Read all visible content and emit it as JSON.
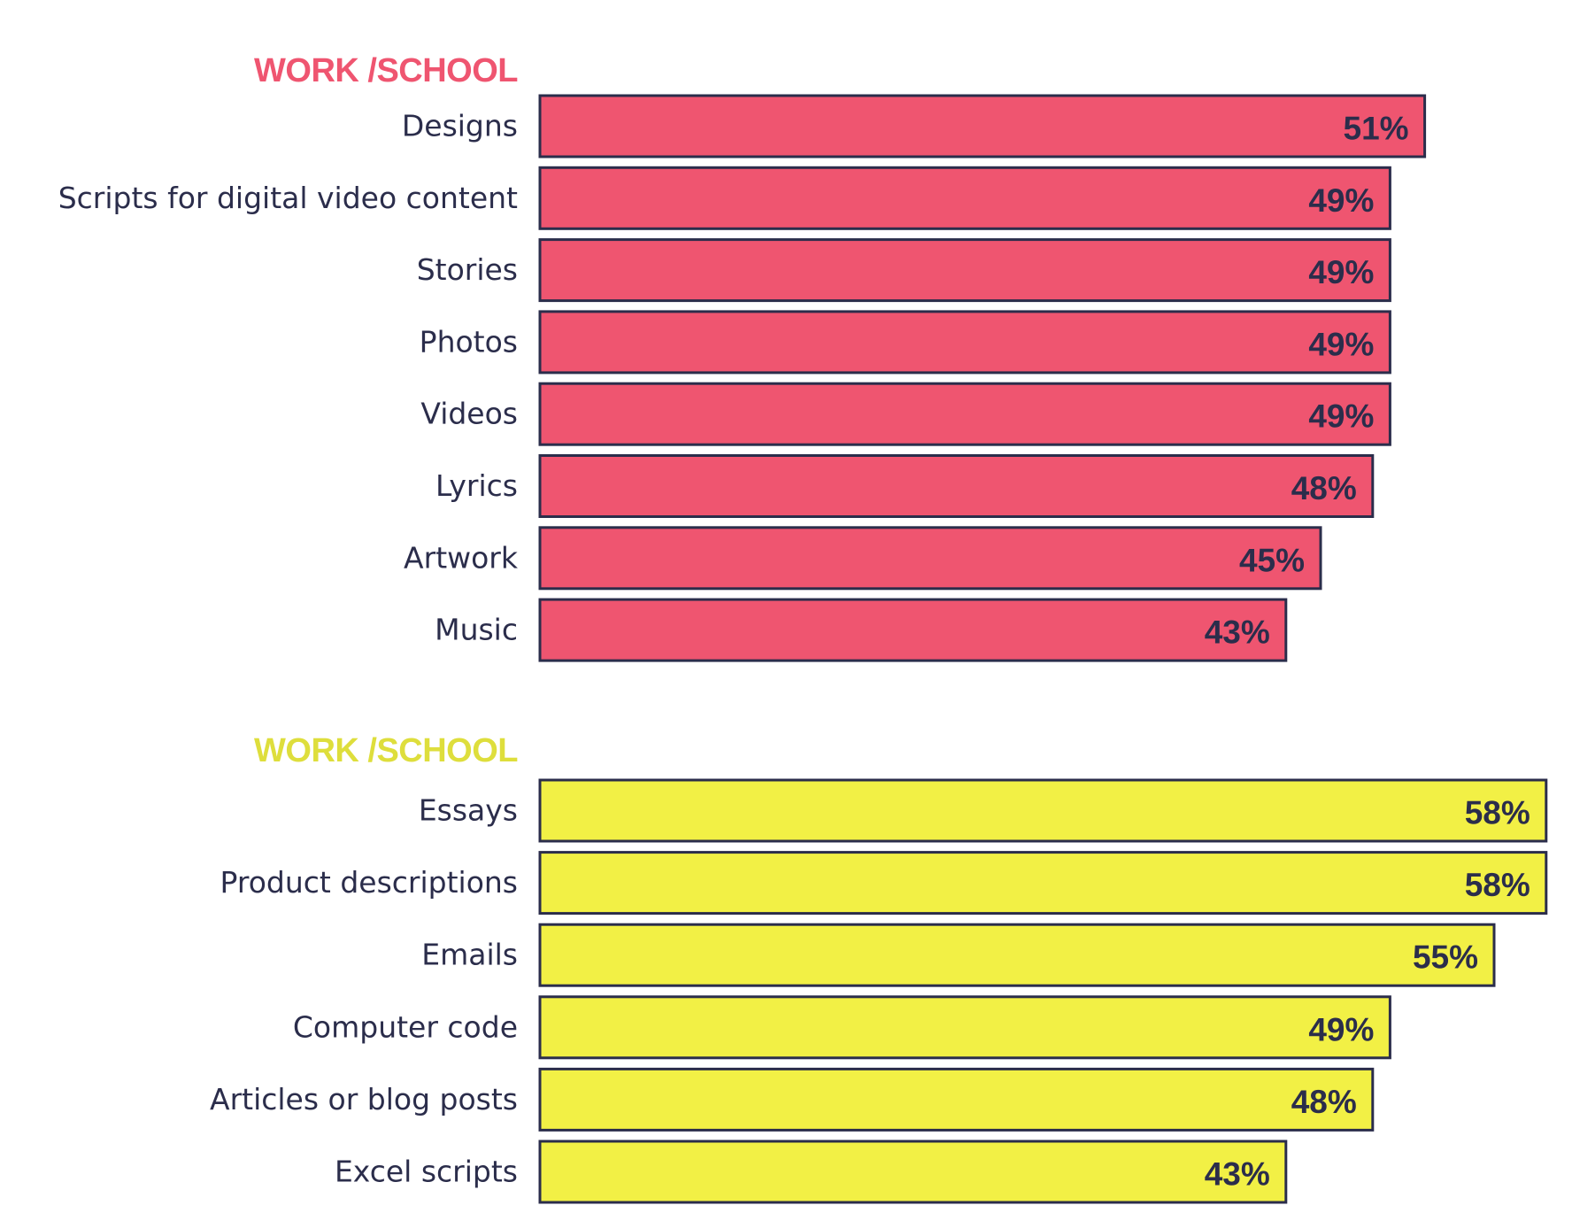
{
  "chart_data": [
    {
      "type": "bar",
      "orientation": "horizontal",
      "title": "WORK /SCHOOL",
      "title_color": "#ef5570",
      "bar_color": "#ef5570",
      "categories": [
        "Designs",
        "Scripts for digital video content",
        "Stories",
        "Photos",
        "Videos",
        "Lyrics",
        "Artwork",
        "Music"
      ],
      "values": [
        51,
        49,
        49,
        49,
        49,
        48,
        45,
        43
      ],
      "value_labels": [
        "51%",
        "49%",
        "49%",
        "49%",
        "49%",
        "48%",
        "45%",
        "43%"
      ],
      "xlim": [
        0,
        58
      ],
      "grid": false,
      "legend": "none"
    },
    {
      "type": "bar",
      "orientation": "horizontal",
      "title": "WORK /SCHOOL",
      "title_color": "#dede3c",
      "bar_color": "#f2f045",
      "categories": [
        "Essays",
        "Product descriptions",
        "Emails",
        "Computer code",
        "Articles or blog posts",
        "Excel scripts"
      ],
      "values": [
        58,
        58,
        55,
        49,
        48,
        43
      ],
      "value_labels": [
        "58%",
        "58%",
        "55%",
        "49%",
        "48%",
        "43%"
      ],
      "xlim": [
        0,
        58
      ],
      "grid": false,
      "legend": "none"
    }
  ],
  "colors": {
    "text": "#2b2d4b",
    "outline": "#2b2d4b"
  }
}
